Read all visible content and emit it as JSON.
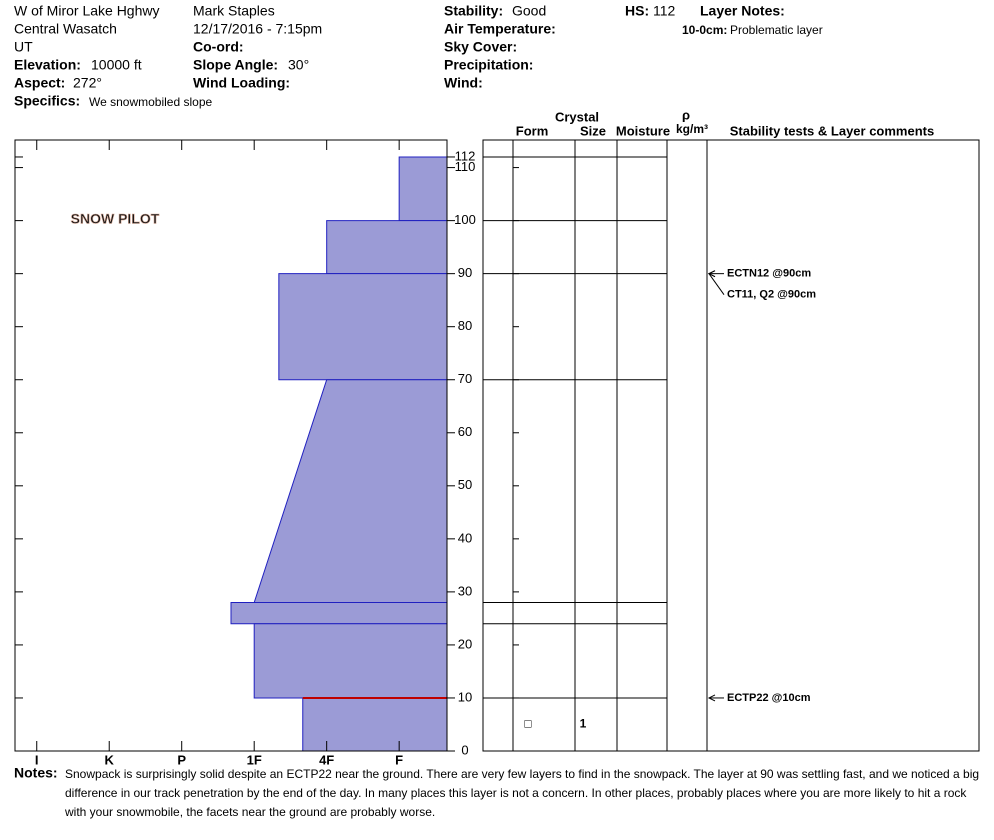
{
  "header": {
    "location": "W of Miror Lake Hghwy",
    "range": "Central Wasatch",
    "state": "UT",
    "elevation": {
      "label": "Elevation:",
      "value": "10000 ft"
    },
    "aspect": {
      "label": "Aspect:",
      "value": "272°"
    },
    "specifics": {
      "label": "Specifics:",
      "value": "We snowmobiled slope"
    },
    "observer": "Mark Staples",
    "datetime": "12/17/2016 - 7:15pm",
    "coord": {
      "label": "Co-ord:"
    },
    "slope": {
      "label": "Slope Angle:",
      "value": "30°"
    },
    "wind_loading": {
      "label": "Wind Loading:"
    },
    "stability": {
      "label": "Stability:",
      "value": "Good"
    },
    "air_temp": {
      "label": "Air Temperature:"
    },
    "sky": {
      "label": "Sky Cover:"
    },
    "precip": {
      "label": "Precipitation:"
    },
    "wind": {
      "label": "Wind:"
    },
    "hs": {
      "label": "HS:",
      "value": "112"
    },
    "layer_notes": {
      "label": "Layer Notes:",
      "items": [
        {
          "range": "10-0cm:",
          "text": "Problematic layer"
        }
      ]
    }
  },
  "chart_data": {
    "type": "snow-profile",
    "logo": "SNOW PILOT",
    "color": "#9b9bd6",
    "xlim": [
      -0.3,
      5.66
    ],
    "xticks": [
      {
        "value": 0,
        "label": "I"
      },
      {
        "value": 1,
        "label": "K"
      },
      {
        "value": 2,
        "label": "P"
      },
      {
        "value": 3,
        "label": "1F"
      },
      {
        "value": 4,
        "label": "4F"
      },
      {
        "value": 5,
        "label": "F"
      }
    ],
    "ylim": [
      0,
      115.2
    ],
    "yticks": [
      0,
      10,
      20,
      30,
      40,
      50,
      60,
      70,
      80,
      90,
      100,
      110,
      112
    ],
    "layers": [
      {
        "top": 112,
        "bottom": 100,
        "hardness_top": 5,
        "hardness_bottom": 5
      },
      {
        "top": 100,
        "bottom": 90,
        "hardness_top": 4,
        "hardness_bottom": 4
      },
      {
        "top": 90,
        "bottom": 70,
        "hardness_top": 3.34,
        "hardness_bottom": 3.34
      },
      {
        "top": 70,
        "bottom": 28,
        "hardness_top": 4,
        "hardness_bottom": 3
      },
      {
        "top": 28,
        "bottom": 24,
        "hardness_top": 2.68,
        "hardness_bottom": 2.68
      },
      {
        "top": 24,
        "bottom": 10,
        "hardness_top": 3,
        "hardness_bottom": 3
      },
      {
        "top": 10,
        "bottom": 0,
        "hardness_top": 3.67,
        "hardness_bottom": 3.67
      }
    ],
    "critical_layer": {
      "depth": 10,
      "color": "#c00000"
    },
    "columns": {
      "crystal": "Crystal",
      "form": "Form",
      "size": "Size",
      "moisture": "Moisture",
      "rho": "ρ",
      "density": "kg/m³",
      "tests": "Stability tests & Layer comments"
    },
    "grains": [
      {
        "depth": 5,
        "form": "□",
        "size": "1"
      }
    ],
    "tests": [
      {
        "depth": 90,
        "label": "ECTN12 @90cm"
      },
      {
        "depth": 90,
        "label": "CT11, Q2 @90cm"
      },
      {
        "depth": 10,
        "label": "ECTP22 @10cm"
      }
    ]
  },
  "notes": {
    "label": "Notes:",
    "lines": [
      "Snowpack is surprisingly solid despite an ECTP22 near the ground. There are very few layers to find in the snowpack. The layer at 90 was settling fast, and we noticed a big",
      "difference in our track penetration by the end of the day. In many places this layer is not a concern. In other places, probably places where you are more likely to hit a rock",
      "with your snowmobile, the facets near the ground are probably worse."
    ]
  }
}
